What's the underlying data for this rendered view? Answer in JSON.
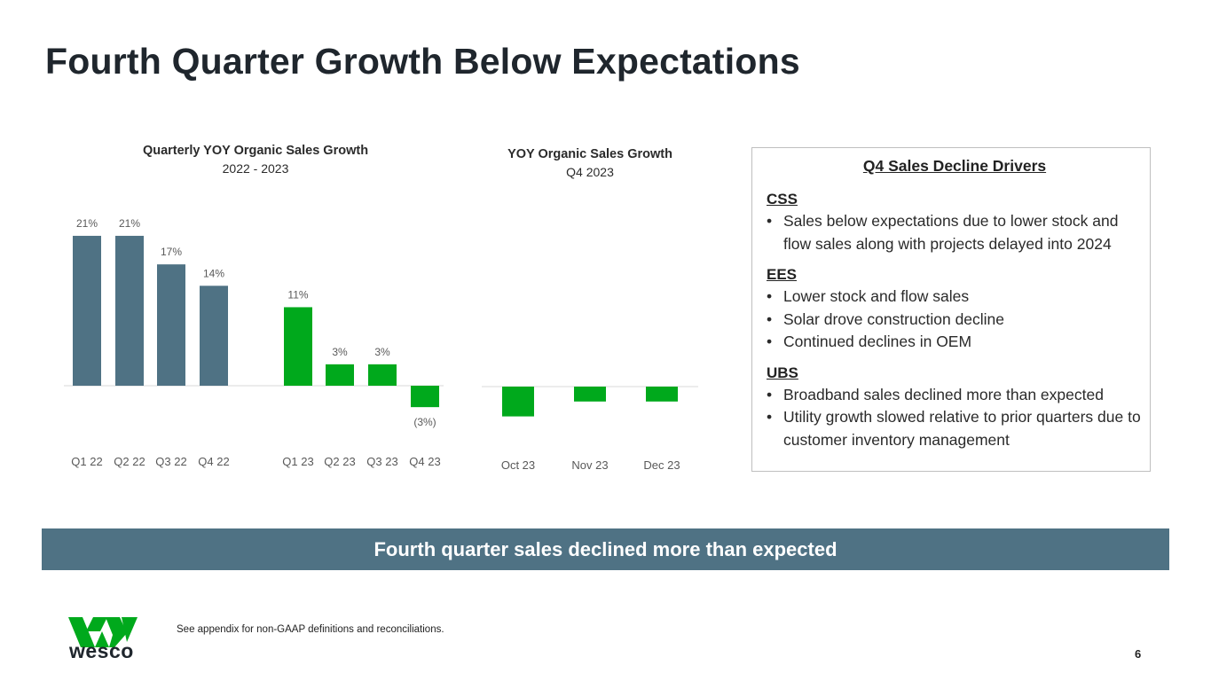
{
  "page": {
    "title": "Fourth Quarter Growth Below Expectations",
    "banner": "Fourth quarter sales declined more than expected",
    "footnote": "See appendix for non-GAAP definitions and reconciliations.",
    "page_number": "6",
    "logo_text": "wesco"
  },
  "colors": {
    "slate": "#4f7284",
    "green": "#00a91c",
    "text": "#222a31"
  },
  "drivers": {
    "heading": "Q4 Sales Decline Drivers",
    "segments": [
      {
        "name": "CSS",
        "bullets": [
          "Sales below expectations due to lower stock and flow sales along with projects delayed into 2024"
        ]
      },
      {
        "name": "EES",
        "bullets": [
          "Lower stock and flow sales",
          "Solar drove construction decline",
          "Continued declines in OEM"
        ]
      },
      {
        "name": "UBS",
        "bullets": [
          "Broadband sales declined more than expected",
          "Utility growth slowed relative to prior quarters due to customer inventory management"
        ]
      }
    ]
  },
  "chart_data": [
    {
      "type": "bar",
      "title": "Quarterly YOY Organic Sales Growth",
      "subtitle": "2022 - 2023",
      "categories": [
        "Q1 22",
        "Q2 22",
        "Q3 22",
        "Q4 22",
        "Q1 23",
        "Q2 23",
        "Q3 23",
        "Q4 23"
      ],
      "values": [
        21,
        21,
        17,
        14,
        11,
        3,
        3,
        -3
      ],
      "labels": [
        "21%",
        "21%",
        "17%",
        "14%",
        "11%",
        "3%",
        "3%",
        "(3%)"
      ],
      "series_colors": [
        "#4f7284",
        "#4f7284",
        "#4f7284",
        "#4f7284",
        "#00a91c",
        "#00a91c",
        "#00a91c",
        "#00a91c"
      ],
      "xlabel": "",
      "ylabel": "",
      "ylim": [
        -3,
        21
      ],
      "grid": false
    },
    {
      "type": "bar",
      "title": "YOY Organic Sales Growth",
      "subtitle": "Q4 2023",
      "categories": [
        "Oct 23",
        "Nov 23",
        "Dec 23"
      ],
      "values": [
        -4,
        -2,
        -2
      ],
      "labels": [],
      "series_colors": [
        "#00a91c",
        "#00a91c",
        "#00a91c"
      ],
      "xlabel": "",
      "ylabel": "",
      "ylim": [
        -4,
        0
      ],
      "grid": false
    }
  ]
}
